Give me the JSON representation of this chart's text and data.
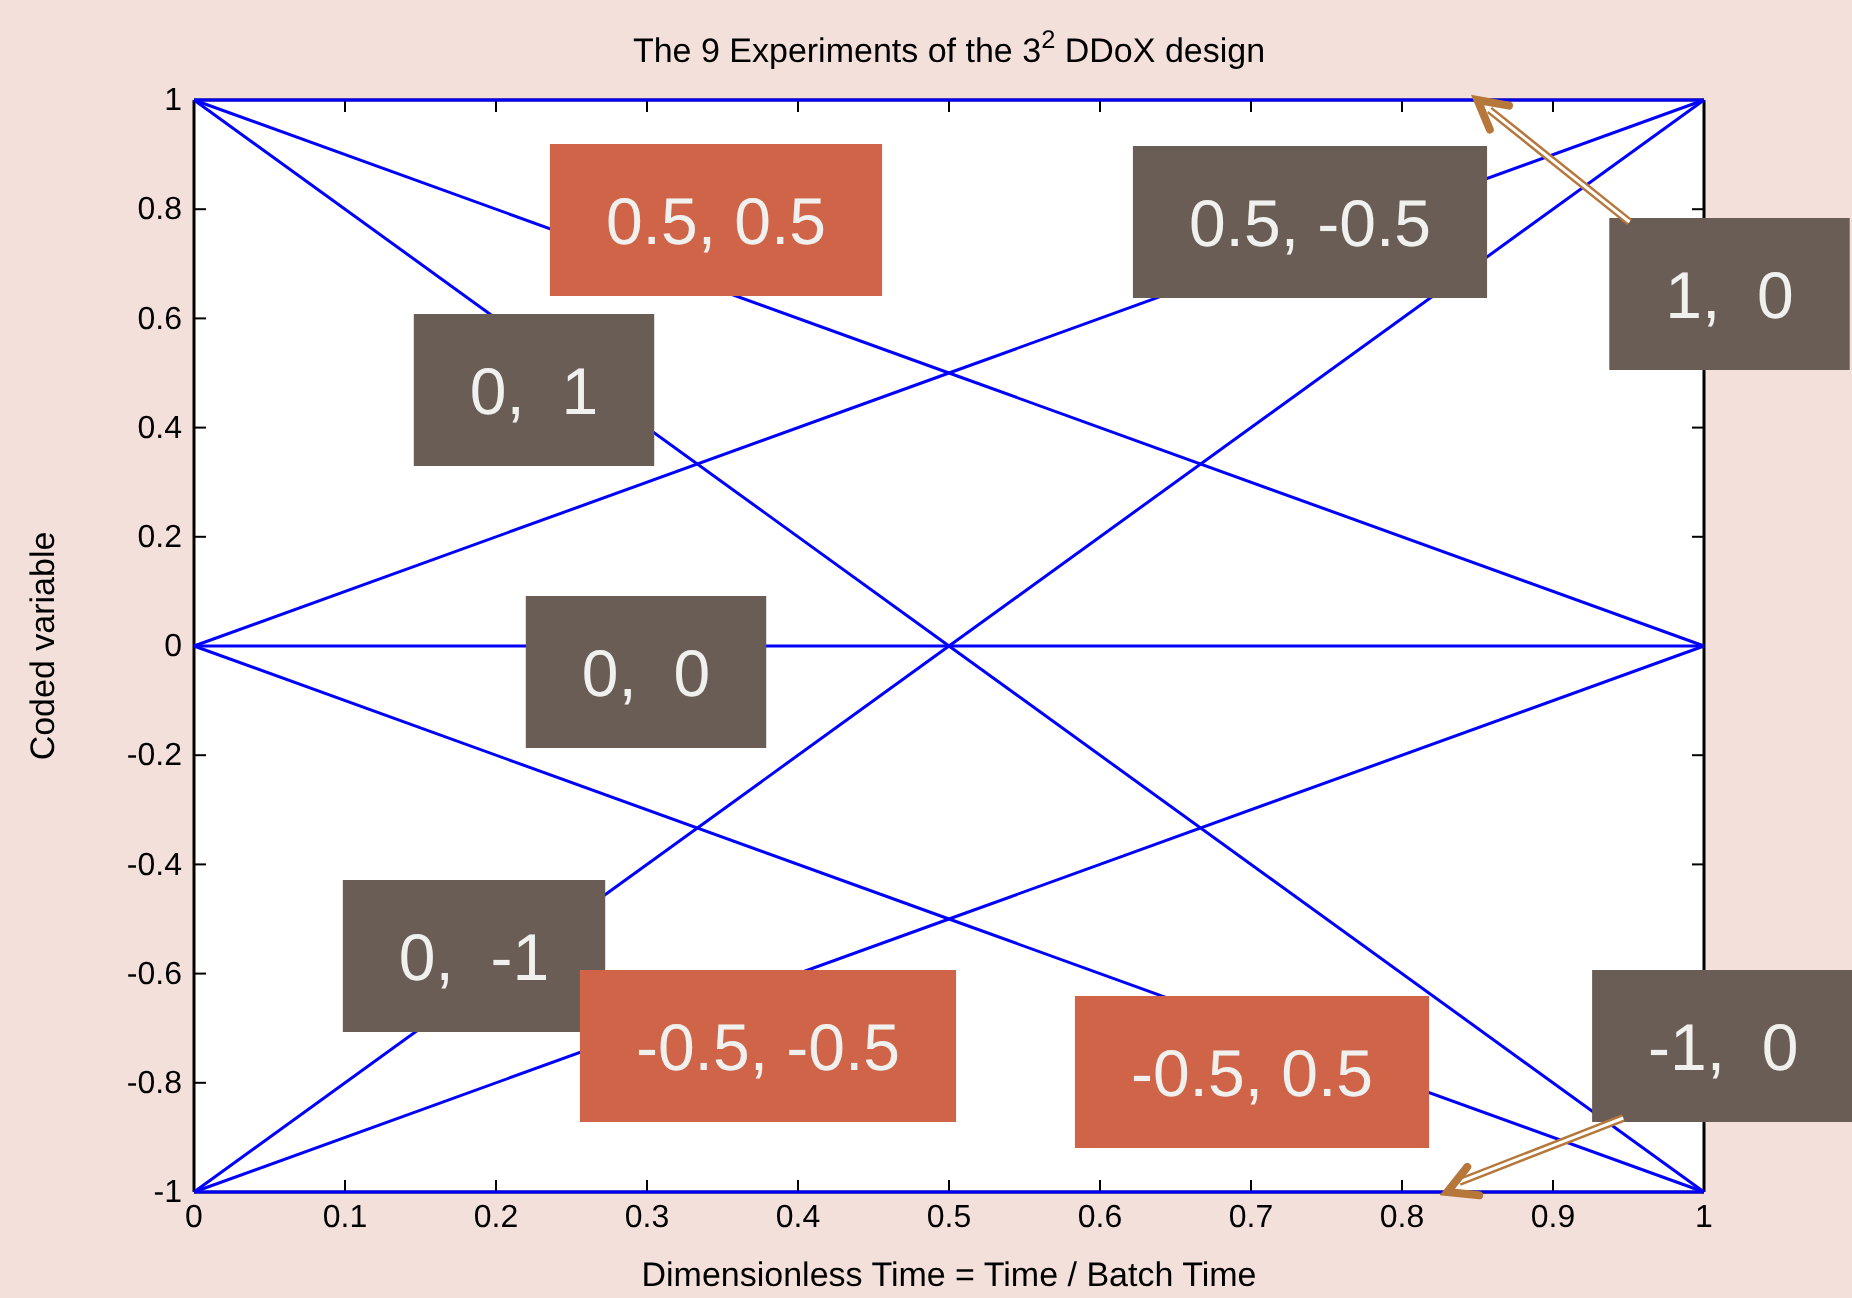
{
  "chart_data": {
    "type": "line",
    "title": "The 9 Experiments of the 3$^{2}$ DDoX design",
    "xlabel": "Dimensionless Time = Time / Batch Time",
    "ylabel": "Coded variable",
    "xlim": [
      0,
      1
    ],
    "ylim": [
      -1,
      1
    ],
    "xticks": [
      0,
      0.1,
      0.2,
      0.3,
      0.4,
      0.5,
      0.6,
      0.7,
      0.8,
      0.9,
      1
    ],
    "yticks": [
      -1,
      -0.8,
      -0.6,
      -0.4,
      -0.2,
      0,
      0.2,
      0.4,
      0.6,
      0.8,
      1
    ],
    "grid": false,
    "marker": "none",
    "line_style": "solid",
    "x": [
      0,
      0.5,
      1
    ],
    "series": [
      {
        "color": "#0000ff",
        "values": [
          1,
          1,
          1
        ]
      },
      {
        "color": "#0000ff",
        "values": [
          0,
          0,
          0
        ]
      },
      {
        "color": "#0000ff",
        "values": [
          -1,
          -1,
          -1
        ]
      },
      {
        "color": "#0000ff",
        "values": [
          1,
          0.5,
          0
        ]
      },
      {
        "color": "#0000ff",
        "values": [
          1,
          0,
          -1
        ]
      },
      {
        "color": "#0000ff",
        "values": [
          0,
          0.5,
          1
        ]
      },
      {
        "color": "#0000ff",
        "values": [
          0,
          -0.5,
          -1
        ]
      },
      {
        "color": "#0000ff",
        "values": [
          -1,
          -0.5,
          0
        ]
      },
      {
        "color": "#0000ff",
        "values": [
          -1,
          0,
          1
        ]
      }
    ],
    "annotations": [
      "0.5, 0.5",
      "0,  1",
      "0.5, -0.5",
      {
        "text": "1,  0",
        "x": 0.85,
        "y": 1
      },
      "0,  0",
      "0,  -1",
      "-0.5, -0.5",
      "-0.5, 0.5",
      {
        "text": "-1,  0",
        "x": 0.83,
        "y": -1
      }
    ]
  }
}
